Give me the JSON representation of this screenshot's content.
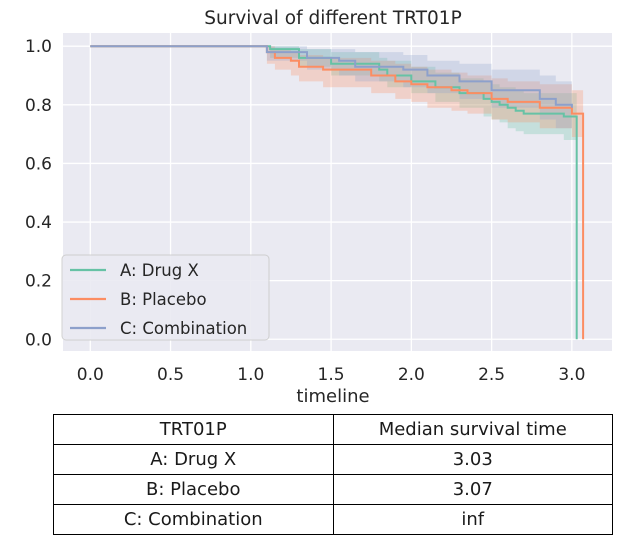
{
  "chart_data": {
    "type": "line",
    "title": "Survival of different TRT01P",
    "xlabel": "timeline",
    "ylabel": "",
    "xlim": [
      -0.17,
      3.25
    ],
    "ylim": [
      -0.04,
      1.045
    ],
    "xticks": [
      "0.0",
      "0.5",
      "1.0",
      "1.5",
      "2.0",
      "2.5",
      "3.0"
    ],
    "yticks": [
      "0.0",
      "0.2",
      "0.4",
      "0.6",
      "0.8",
      "1.0"
    ],
    "grid": true,
    "legend_position": "lower-left",
    "series": [
      {
        "name": "A: Drug X",
        "color": "#66c2a5",
        "x": [
          0,
          1.12,
          1.3,
          1.5,
          1.8,
          1.85,
          2.0,
          2.15,
          2.3,
          2.45,
          2.5,
          2.55,
          2.6,
          2.65,
          2.7,
          2.95,
          3.03
        ],
        "y": [
          1.0,
          0.99,
          0.96,
          0.94,
          0.92,
          0.9,
          0.88,
          0.86,
          0.84,
          0.82,
          0.81,
          0.8,
          0.79,
          0.78,
          0.77,
          0.76,
          0.0
        ],
        "ci_lower": [
          1.0,
          0.96,
          0.93,
          0.9,
          0.88,
          0.86,
          0.84,
          0.81,
          0.79,
          0.76,
          0.75,
          0.74,
          0.72,
          0.71,
          0.7,
          0.68,
          0.66
        ],
        "ci_upper": [
          1.0,
          1.0,
          0.99,
          0.98,
          0.96,
          0.95,
          0.93,
          0.91,
          0.89,
          0.88,
          0.87,
          0.86,
          0.86,
          0.85,
          0.84,
          0.84,
          0.84
        ]
      },
      {
        "name": "B: Placebo",
        "color": "#fc8d62",
        "x": [
          0,
          1.1,
          1.15,
          1.25,
          1.3,
          1.45,
          1.75,
          1.9,
          2.0,
          2.1,
          2.25,
          2.35,
          2.5,
          2.6,
          2.8,
          3.0,
          3.07
        ],
        "y": [
          1.0,
          0.98,
          0.96,
          0.95,
          0.93,
          0.92,
          0.9,
          0.88,
          0.87,
          0.86,
          0.85,
          0.84,
          0.82,
          0.81,
          0.79,
          0.77,
          0.0
        ],
        "ci_lower": [
          1.0,
          0.94,
          0.92,
          0.9,
          0.88,
          0.86,
          0.84,
          0.82,
          0.81,
          0.79,
          0.78,
          0.77,
          0.75,
          0.74,
          0.72,
          0.69,
          0.69
        ],
        "ci_upper": [
          1.0,
          1.0,
          0.99,
          0.98,
          0.97,
          0.96,
          0.95,
          0.94,
          0.93,
          0.92,
          0.91,
          0.9,
          0.89,
          0.88,
          0.87,
          0.85,
          0.85
        ]
      },
      {
        "name": "C: Combination",
        "color": "#8da0cb",
        "x": [
          0,
          1.1,
          1.35,
          1.55,
          1.65,
          1.95,
          2.1,
          2.3,
          2.5,
          2.8,
          2.9,
          3.0
        ],
        "y": [
          1.0,
          0.98,
          0.96,
          0.95,
          0.93,
          0.92,
          0.9,
          0.88,
          0.85,
          0.82,
          0.8,
          0.79
        ],
        "ci_lower": [
          1.0,
          0.95,
          0.92,
          0.9,
          0.88,
          0.86,
          0.84,
          0.82,
          0.79,
          0.75,
          0.72,
          0.71
        ],
        "ci_upper": [
          1.0,
          1.0,
          0.99,
          0.99,
          0.98,
          0.97,
          0.95,
          0.94,
          0.92,
          0.9,
          0.88,
          0.87
        ]
      }
    ]
  },
  "table": {
    "headers": [
      "TRT01P",
      "Median survival time"
    ],
    "rows": [
      [
        "A: Drug X",
        "3.03"
      ],
      [
        "B: Placebo",
        "3.07"
      ],
      [
        "C: Combination",
        "inf"
      ]
    ]
  },
  "colors": {
    "plot_background": "#eaeaf2",
    "grid": "#ffffff"
  }
}
